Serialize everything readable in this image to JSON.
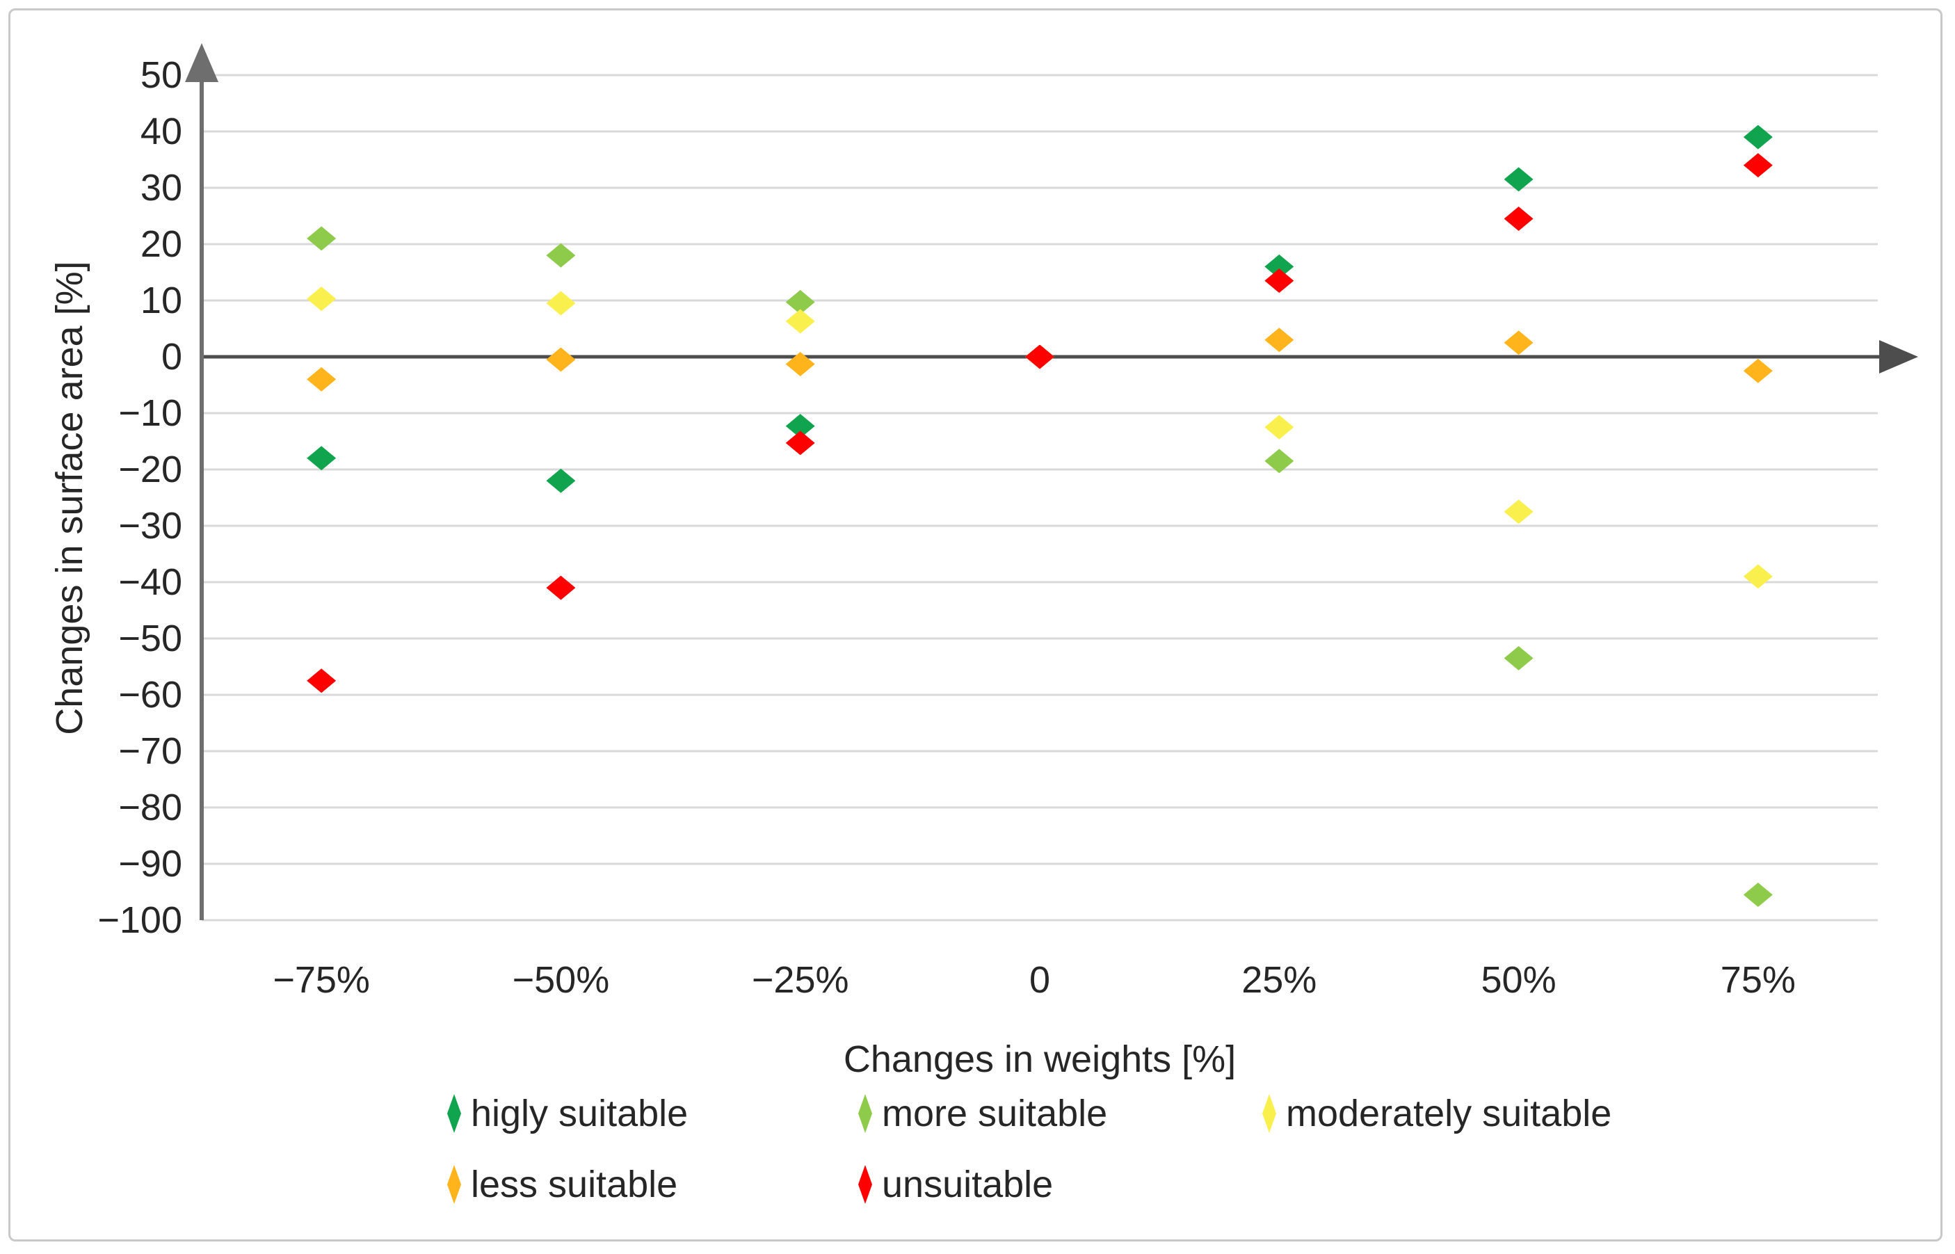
{
  "chart_data": {
    "type": "scatter",
    "title": "",
    "xlabel": "Changes in weights [%]",
    "ylabel": "Changes in surface area [%]",
    "categories": [
      "−75%",
      "−50%",
      "−25%",
      "0",
      "25%",
      "50%",
      "75%"
    ],
    "x_numeric": [
      -75,
      -50,
      -25,
      0,
      25,
      50,
      75
    ],
    "ylim": [
      -100,
      50
    ],
    "ytick_step": 10,
    "yticks": [
      50,
      40,
      30,
      20,
      10,
      0,
      -10,
      -20,
      -30,
      -40,
      -50,
      -60,
      -70,
      -80,
      -90,
      -100
    ],
    "ytick_labels": [
      "50",
      "40",
      "30",
      "20",
      "10",
      "0",
      "−10",
      "−20",
      "−30",
      "−40",
      "−50",
      "−60",
      "−70",
      "−80",
      "−90",
      "−100"
    ],
    "grid": "horizontal",
    "legend_position": "bottom",
    "colors": {
      "gridline": "#d9d9d9",
      "zero_line": "#4d4d4d",
      "axis_line": "#6e6e6e",
      "text": "#262626"
    },
    "series": [
      {
        "name": "higly suitable",
        "color": "#0fa44d",
        "values": [
          -18,
          -22,
          -12.3,
          0,
          16,
          31.5,
          39
        ]
      },
      {
        "name": "more suitable",
        "color": "#8fcb4b",
        "values": [
          21,
          18,
          9.7,
          0,
          -18.5,
          -53.5,
          -95.5
        ]
      },
      {
        "name": "moderately suitable",
        "color": "#faf04d",
        "values": [
          10.3,
          9.5,
          6.3,
          0,
          -12.5,
          -27.5,
          -39
        ]
      },
      {
        "name": "less suitable",
        "color": "#ffb41c",
        "values": [
          -4,
          -0.5,
          -1.3,
          0,
          3,
          2.5,
          -2.5
        ]
      },
      {
        "name": "unsuitable",
        "color": "#fe0000",
        "values": [
          -57.5,
          -41,
          -15.3,
          0,
          13.5,
          24.5,
          34
        ]
      }
    ]
  }
}
